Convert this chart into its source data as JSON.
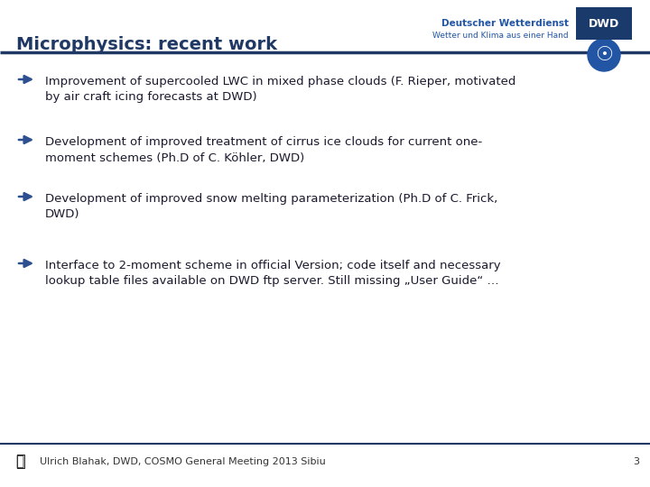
{
  "title": "Microphysics: recent work",
  "title_color": "#1f3864",
  "title_fontsize": 14,
  "background_color": "#ffffff",
  "header_line_color": "#1f3864",
  "bullet_color": "#2e5090",
  "bullet_text_color": "#1a1a2e",
  "bullets": [
    "Improvement of supercooled LWC in mixed phase clouds (F. Rieper, motivated\nby air craft icing forecasts at DWD)",
    "Development of improved treatment of cirrus ice clouds for current one-\nmoment schemes (Ph.D of C. Köhler, DWD)",
    "Development of improved snow melting parameterization (Ph.D of C. Frick,\nDWD)",
    "Interface to 2-moment scheme in official Version; code itself and necessary\nlookup table files available on DWD ftp server. Still missing „User Guide“ …"
  ],
  "bullet_fontsize": 9.5,
  "footer_text": "Ulrich Blahak, DWD, COSMO General Meeting 2013 Sibiu",
  "footer_number": "3",
  "footer_line_color": "#1f3864",
  "footer_fontsize": 8,
  "dwd_subtitle": "Deutscher Wetterdienst",
  "dwd_tagline": "Wetter und Klima aus einer Hand",
  "logo_color": "#2255a4",
  "logo_box_color": "#1a3a6b"
}
